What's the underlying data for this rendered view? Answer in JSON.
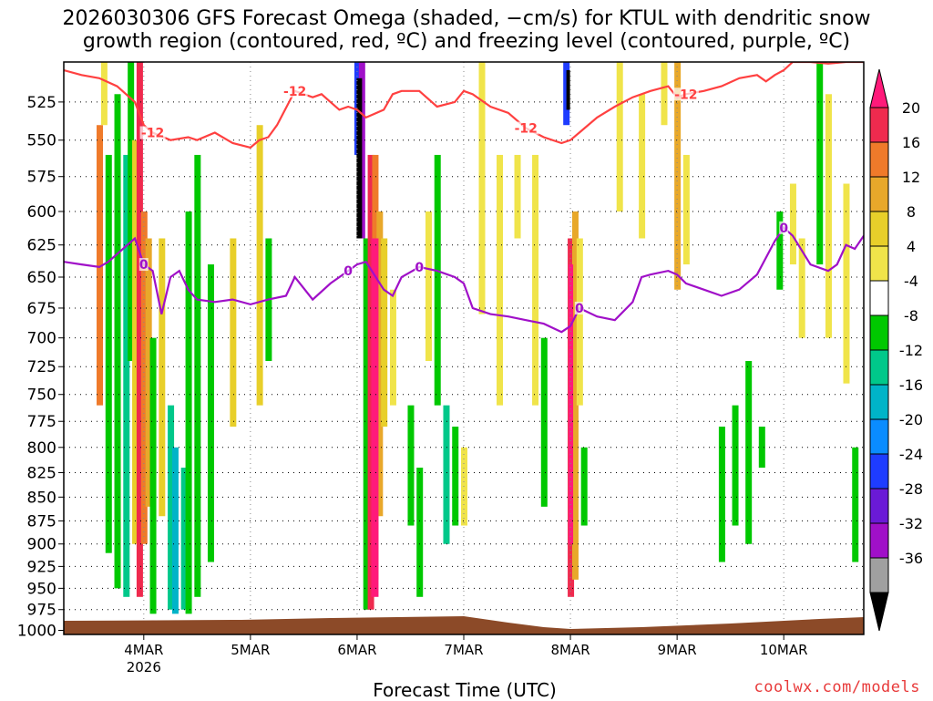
{
  "title_line1": "2026030306 GFS Forecast Omega (shaded, −cm/s) for KTUL with dendritic snow",
  "title_line2": "growth region (contoured, red, ºC) and freezing level (contoured, purple, ºC)",
  "credit": "coolwx.com/models",
  "chart_data": {
    "type": "heatmap",
    "title": "2026030306 GFS Forecast Omega (shaded, −cm/s) for KTUL with dendritic snow growth region (contoured, red, ºC) and freezing level (contoured, purple, ºC)",
    "xlabel": "Forecast Time (UTC)",
    "ylabel": "",
    "x_ticks": [
      {
        "label": "4MAR",
        "sub": "2026",
        "hours": 18
      },
      {
        "label": "5MAR",
        "hours": 42
      },
      {
        "label": "6MAR",
        "hours": 66
      },
      {
        "label": "7MAR",
        "hours": 90
      },
      {
        "label": "8MAR",
        "hours": 114
      },
      {
        "label": "9MAR",
        "hours": 138
      },
      {
        "label": "10MAR",
        "hours": 162
      }
    ],
    "xlim_hours": [
      0,
      180
    ],
    "y_ticks": [
      525,
      550,
      575,
      600,
      625,
      650,
      675,
      700,
      725,
      750,
      775,
      800,
      825,
      850,
      875,
      900,
      925,
      950,
      975,
      1000
    ],
    "ylim": [
      1005,
      500
    ],
    "ylog": true,
    "grid": true,
    "colorbar": {
      "labels": [
        "20",
        "16",
        "12",
        "8",
        "4",
        "-4",
        "-8",
        "-12",
        "-16",
        "-20",
        "-24",
        "-28",
        "-32",
        "-36"
      ],
      "colors": [
        "#ef2a4e",
        "#ef7a2a",
        "#e8a82a",
        "#e8cf2a",
        "#f0e44a",
        "#ffffff",
        "#00c800",
        "#00c88a",
        "#00b4c8",
        "#0a8cff",
        "#1e3cff",
        "#6a1ad6",
        "#a010c8",
        "#a0a0a0"
      ],
      "top_color": "#ff1a7a",
      "bottom_color": "#000000"
    },
    "series": [
      {
        "name": "-12",
        "color": "#ff4040",
        "x": [
          0,
          4,
          8,
          12,
          16,
          18,
          20,
          24,
          28,
          30,
          34,
          38,
          42,
          44,
          46,
          48,
          52,
          56,
          58,
          60,
          62,
          64,
          66,
          68,
          72,
          74,
          76,
          80,
          84,
          88,
          90,
          92,
          96,
          100,
          104,
          108,
          112,
          114,
          116,
          120,
          124,
          128,
          132,
          136,
          138,
          140,
          144,
          148,
          152,
          156,
          158,
          160,
          162,
          164,
          168,
          172,
          176,
          180
        ],
        "values": [
          505,
          508,
          510,
          515,
          525,
          540,
          545,
          550,
          548,
          550,
          545,
          552,
          555,
          550,
          548,
          540,
          518,
          522,
          520,
          525,
          530,
          528,
          530,
          535,
          530,
          520,
          518,
          518,
          528,
          525,
          518,
          520,
          528,
          532,
          542,
          548,
          552,
          550,
          545,
          535,
          528,
          522,
          518,
          515,
          522,
          520,
          518,
          515,
          510,
          508,
          512,
          508,
          505,
          500,
          500,
          501,
          500,
          500
        ]
      },
      {
        "name": "0",
        "color": "#a010c8",
        "x": [
          0,
          4,
          8,
          10,
          12,
          16,
          18,
          20,
          22,
          24,
          26,
          28,
          30,
          34,
          38,
          42,
          46,
          50,
          52,
          56,
          60,
          64,
          66,
          68,
          72,
          74,
          76,
          80,
          84,
          88,
          90,
          92,
          96,
          100,
          104,
          108,
          112,
          114,
          116,
          120,
          124,
          128,
          130,
          132,
          136,
          138,
          140,
          144,
          148,
          152,
          156,
          160,
          162,
          164,
          168,
          172,
          174,
          176,
          178,
          180
        ],
        "values": [
          638,
          640,
          642,
          638,
          632,
          620,
          640,
          645,
          680,
          650,
          645,
          660,
          668,
          670,
          668,
          672,
          668,
          665,
          650,
          668,
          655,
          645,
          640,
          638,
          660,
          665,
          650,
          642,
          645,
          650,
          655,
          675,
          680,
          682,
          685,
          688,
          695,
          690,
          675,
          682,
          685,
          670,
          650,
          648,
          645,
          648,
          655,
          660,
          665,
          660,
          648,
          622,
          612,
          618,
          640,
          645,
          640,
          625,
          628,
          618
        ]
      }
    ],
    "dendritic_label": "-12",
    "freezing_label": "0",
    "terrain_color": "#8c4a28"
  }
}
